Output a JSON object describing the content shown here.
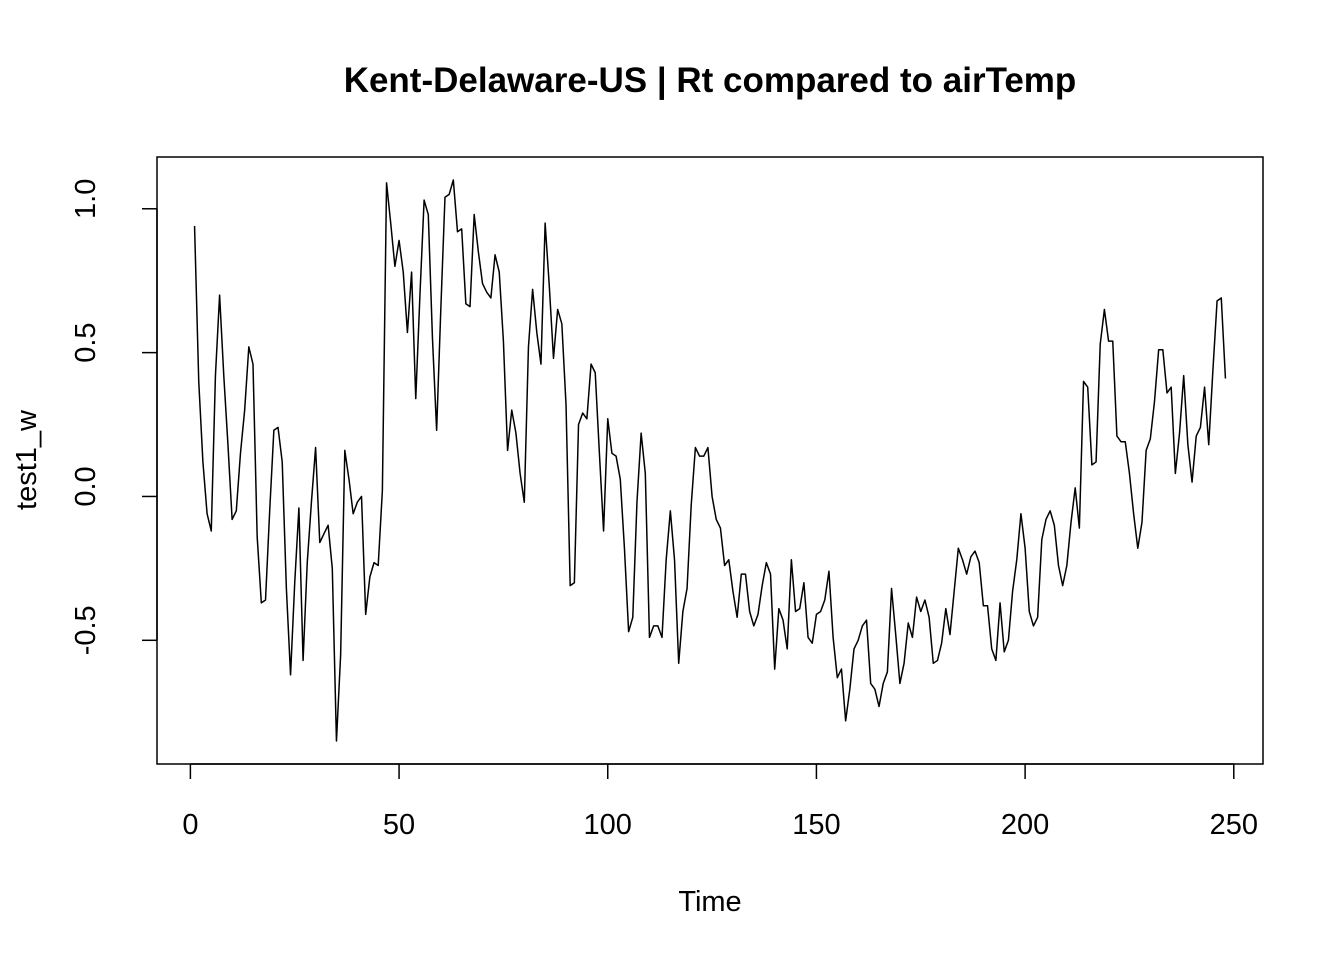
{
  "chart_data": {
    "type": "line",
    "title": "Kent-Delaware-US | Rt compared to airTemp",
    "xlabel": "Time",
    "ylabel": "test1_w",
    "xlim": [
      -8,
      257
    ],
    "ylim": [
      -0.93,
      1.18
    ],
    "xticks": [
      0,
      50,
      100,
      150,
      200,
      250
    ],
    "yticks": [
      -0.5,
      0.0,
      0.5,
      1.0
    ],
    "xtick_labels": [
      "0",
      "50",
      "100",
      "150",
      "200",
      "250"
    ],
    "ytick_labels": [
      "-0.5",
      "0.0",
      "0.5",
      "1.0"
    ],
    "grid": false,
    "line_color": "#000000",
    "series": [
      {
        "x_start": 1,
        "x_step": 1,
        "values": [
          0.94,
          0.4,
          0.12,
          -0.06,
          -0.12,
          0.42,
          0.7,
          0.42,
          0.18,
          -0.08,
          -0.05,
          0.15,
          0.3,
          0.52,
          0.46,
          -0.14,
          -0.37,
          -0.36,
          -0.05,
          0.23,
          0.24,
          0.12,
          -0.32,
          -0.62,
          -0.3,
          -0.04,
          -0.57,
          -0.23,
          -0.02,
          0.17,
          -0.16,
          -0.13,
          -0.1,
          -0.25,
          -0.85,
          -0.55,
          0.16,
          0.06,
          -0.06,
          -0.02,
          0.0,
          -0.41,
          -0.28,
          -0.23,
          -0.24,
          0.02,
          1.09,
          0.95,
          0.8,
          0.89,
          0.78,
          0.57,
          0.78,
          0.34,
          0.7,
          1.03,
          0.98,
          0.55,
          0.23,
          0.65,
          1.04,
          1.05,
          1.1,
          0.92,
          0.93,
          0.67,
          0.66,
          0.98,
          0.85,
          0.74,
          0.71,
          0.69,
          0.84,
          0.78,
          0.54,
          0.16,
          0.3,
          0.22,
          0.08,
          -0.02,
          0.52,
          0.72,
          0.57,
          0.46,
          0.95,
          0.73,
          0.48,
          0.65,
          0.6,
          0.32,
          -0.31,
          -0.3,
          0.25,
          0.29,
          0.27,
          0.46,
          0.43,
          0.15,
          -0.12,
          0.27,
          0.15,
          0.14,
          0.06,
          -0.18,
          -0.47,
          -0.42,
          -0.02,
          0.22,
          0.08,
          -0.49,
          -0.45,
          -0.45,
          -0.49,
          -0.22,
          -0.05,
          -0.22,
          -0.58,
          -0.4,
          -0.32,
          -0.03,
          0.17,
          0.14,
          0.14,
          0.17,
          0.0,
          -0.08,
          -0.11,
          -0.24,
          -0.22,
          -0.33,
          -0.42,
          -0.27,
          -0.27,
          -0.4,
          -0.45,
          -0.41,
          -0.31,
          -0.23,
          -0.27,
          -0.6,
          -0.39,
          -0.43,
          -0.53,
          -0.22,
          -0.4,
          -0.39,
          -0.3,
          -0.49,
          -0.51,
          -0.41,
          -0.4,
          -0.36,
          -0.26,
          -0.49,
          -0.63,
          -0.6,
          -0.78,
          -0.67,
          -0.53,
          -0.5,
          -0.45,
          -0.43,
          -0.65,
          -0.67,
          -0.73,
          -0.65,
          -0.61,
          -0.32,
          -0.48,
          -0.65,
          -0.58,
          -0.44,
          -0.49,
          -0.35,
          -0.4,
          -0.36,
          -0.42,
          -0.58,
          -0.57,
          -0.51,
          -0.39,
          -0.48,
          -0.33,
          -0.18,
          -0.22,
          -0.27,
          -0.21,
          -0.19,
          -0.23,
          -0.38,
          -0.38,
          -0.53,
          -0.57,
          -0.37,
          -0.54,
          -0.5,
          -0.33,
          -0.22,
          -0.06,
          -0.18,
          -0.4,
          -0.45,
          -0.42,
          -0.15,
          -0.08,
          -0.05,
          -0.1,
          -0.24,
          -0.31,
          -0.24,
          -0.09,
          0.03,
          -0.11,
          0.4,
          0.38,
          0.11,
          0.12,
          0.53,
          0.65,
          0.54,
          0.54,
          0.21,
          0.19,
          0.19,
          0.08,
          -0.06,
          -0.18,
          -0.09,
          0.16,
          0.2,
          0.33,
          0.51,
          0.51,
          0.36,
          0.38,
          0.08,
          0.22,
          0.42,
          0.18,
          0.05,
          0.21,
          0.24,
          0.38,
          0.18,
          0.44,
          0.68,
          0.69,
          0.41
        ]
      }
    ]
  }
}
